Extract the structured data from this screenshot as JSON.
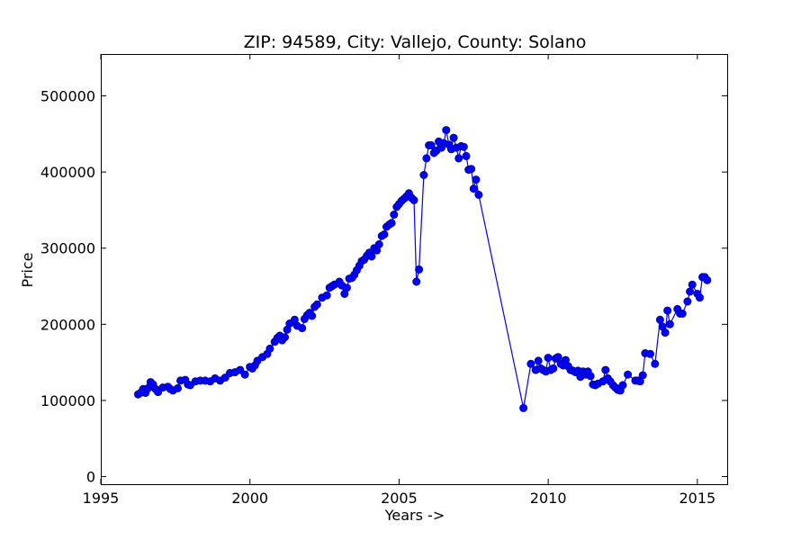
{
  "chart_data": {
    "type": "line",
    "title": "ZIP: 94589, City: Vallejo, County: Solano",
    "xlabel": "Years ->",
    "ylabel": "Price",
    "xlim": [
      1995,
      2016
    ],
    "ylim": [
      -10000,
      555000
    ],
    "xticks": [
      1995,
      2000,
      2005,
      2010,
      2015
    ],
    "yticks": [
      0,
      100000,
      200000,
      300000,
      400000,
      500000
    ],
    "grid": false,
    "series": [
      {
        "color": "#0000ff",
        "marker": "circle",
        "points": [
          [
            1996.25,
            108000
          ],
          [
            1996.33,
            110000
          ],
          [
            1996.42,
            115000
          ],
          [
            1996.5,
            110000
          ],
          [
            1996.58,
            116000
          ],
          [
            1996.67,
            124000
          ],
          [
            1996.75,
            121000
          ],
          [
            1996.83,
            115000
          ],
          [
            1996.92,
            111000
          ],
          [
            1997.08,
            117000
          ],
          [
            1997.25,
            118000
          ],
          [
            1997.33,
            115000
          ],
          [
            1997.42,
            113000
          ],
          [
            1997.58,
            116000
          ],
          [
            1997.67,
            126000
          ],
          [
            1997.83,
            127000
          ],
          [
            1997.92,
            121000
          ],
          [
            1998.0,
            120000
          ],
          [
            1998.17,
            125000
          ],
          [
            1998.33,
            126000
          ],
          [
            1998.5,
            126000
          ],
          [
            1998.67,
            125000
          ],
          [
            1998.83,
            129000
          ],
          [
            1999.0,
            126000
          ],
          [
            1999.17,
            130000
          ],
          [
            1999.33,
            136000
          ],
          [
            1999.5,
            137000
          ],
          [
            1999.67,
            140000
          ],
          [
            1999.83,
            134000
          ],
          [
            2000.0,
            144000
          ],
          [
            2000.08,
            142000
          ],
          [
            2000.17,
            146000
          ],
          [
            2000.25,
            152000
          ],
          [
            2000.42,
            157000
          ],
          [
            2000.58,
            161000
          ],
          [
            2000.67,
            168000
          ],
          [
            2000.83,
            177000
          ],
          [
            2000.92,
            182000
          ],
          [
            2001.0,
            185000
          ],
          [
            2001.08,
            179000
          ],
          [
            2001.17,
            183000
          ],
          [
            2001.25,
            193000
          ],
          [
            2001.33,
            201000
          ],
          [
            2001.5,
            206000
          ],
          [
            2001.58,
            198000
          ],
          [
            2001.75,
            195000
          ],
          [
            2001.83,
            207000
          ],
          [
            2001.92,
            212000
          ],
          [
            2002.0,
            215000
          ],
          [
            2002.08,
            211000
          ],
          [
            2002.17,
            223000
          ],
          [
            2002.25,
            226000
          ],
          [
            2002.42,
            235000
          ],
          [
            2002.58,
            238000
          ],
          [
            2002.67,
            248000
          ],
          [
            2002.75,
            250000
          ],
          [
            2002.83,
            252000
          ],
          [
            2003.0,
            256000
          ],
          [
            2003.08,
            251000
          ],
          [
            2003.17,
            240000
          ],
          [
            2003.25,
            248000
          ],
          [
            2003.33,
            260000
          ],
          [
            2003.42,
            261000
          ],
          [
            2003.5,
            265000
          ],
          [
            2003.58,
            271000
          ],
          [
            2003.67,
            277000
          ],
          [
            2003.75,
            283000
          ],
          [
            2003.83,
            285000
          ],
          [
            2003.92,
            290000
          ],
          [
            2004.0,
            294000
          ],
          [
            2004.08,
            289000
          ],
          [
            2004.17,
            300000
          ],
          [
            2004.25,
            297000
          ],
          [
            2004.33,
            305000
          ],
          [
            2004.42,
            316000
          ],
          [
            2004.5,
            318000
          ],
          [
            2004.58,
            328000
          ],
          [
            2004.67,
            331000
          ],
          [
            2004.75,
            333000
          ],
          [
            2004.83,
            344000
          ],
          [
            2004.92,
            354000
          ],
          [
            2005.0,
            358000
          ],
          [
            2005.08,
            362000
          ],
          [
            2005.17,
            365000
          ],
          [
            2005.25,
            368000
          ],
          [
            2005.33,
            372000
          ],
          [
            2005.42,
            366000
          ],
          [
            2005.5,
            363000
          ],
          [
            2005.58,
            256000
          ],
          [
            2005.67,
            272000
          ],
          [
            2005.83,
            396000
          ],
          [
            2005.92,
            418000
          ],
          [
            2006.0,
            435000
          ],
          [
            2006.08,
            435000
          ],
          [
            2006.17,
            425000
          ],
          [
            2006.25,
            428000
          ],
          [
            2006.33,
            440000
          ],
          [
            2006.42,
            432000
          ],
          [
            2006.5,
            438000
          ],
          [
            2006.58,
            455000
          ],
          [
            2006.67,
            436000
          ],
          [
            2006.75,
            430000
          ],
          [
            2006.83,
            445000
          ],
          [
            2006.92,
            432000
          ],
          [
            2007.0,
            418000
          ],
          [
            2007.08,
            434000
          ],
          [
            2007.17,
            433000
          ],
          [
            2007.25,
            421000
          ],
          [
            2007.33,
            403000
          ],
          [
            2007.42,
            404000
          ],
          [
            2007.5,
            378000
          ],
          [
            2007.58,
            390000
          ],
          [
            2007.67,
            370000
          ],
          [
            2009.17,
            90000
          ],
          [
            2009.42,
            148000
          ],
          [
            2009.58,
            140000
          ],
          [
            2009.67,
            152000
          ],
          [
            2009.75,
            142000
          ],
          [
            2009.83,
            140000
          ],
          [
            2009.92,
            138000
          ],
          [
            2010.0,
            156000
          ],
          [
            2010.08,
            140000
          ],
          [
            2010.17,
            142000
          ],
          [
            2010.25,
            155000
          ],
          [
            2010.33,
            157000
          ],
          [
            2010.42,
            148000
          ],
          [
            2010.5,
            146000
          ],
          [
            2010.58,
            153000
          ],
          [
            2010.67,
            145000
          ],
          [
            2010.75,
            140000
          ],
          [
            2010.83,
            139000
          ],
          [
            2010.92,
            137000
          ],
          [
            2011.0,
            139000
          ],
          [
            2011.08,
            131000
          ],
          [
            2011.17,
            138000
          ],
          [
            2011.25,
            134000
          ],
          [
            2011.33,
            138000
          ],
          [
            2011.42,
            132000
          ],
          [
            2011.5,
            121000
          ],
          [
            2011.58,
            120000
          ],
          [
            2011.67,
            122000
          ],
          [
            2011.83,
            125000
          ],
          [
            2011.92,
            140000
          ],
          [
            2012.0,
            129000
          ],
          [
            2012.08,
            125000
          ],
          [
            2012.17,
            120000
          ],
          [
            2012.25,
            117000
          ],
          [
            2012.33,
            114000
          ],
          [
            2012.42,
            113000
          ],
          [
            2012.5,
            120000
          ],
          [
            2012.67,
            134000
          ],
          [
            2012.92,
            126000
          ],
          [
            2013.0,
            126000
          ],
          [
            2013.08,
            125000
          ],
          [
            2013.17,
            133000
          ],
          [
            2013.25,
            162000
          ],
          [
            2013.42,
            161000
          ],
          [
            2013.58,
            148000
          ],
          [
            2013.75,
            206000
          ],
          [
            2013.83,
            197000
          ],
          [
            2013.92,
            189000
          ],
          [
            2014.0,
            218000
          ],
          [
            2014.08,
            200000
          ],
          [
            2014.33,
            220000
          ],
          [
            2014.42,
            214000
          ],
          [
            2014.5,
            214000
          ],
          [
            2014.67,
            230000
          ],
          [
            2014.75,
            243000
          ],
          [
            2014.83,
            252000
          ],
          [
            2015.0,
            240000
          ],
          [
            2015.08,
            235000
          ],
          [
            2015.17,
            262000
          ],
          [
            2015.25,
            262000
          ],
          [
            2015.33,
            258000
          ]
        ]
      }
    ]
  }
}
